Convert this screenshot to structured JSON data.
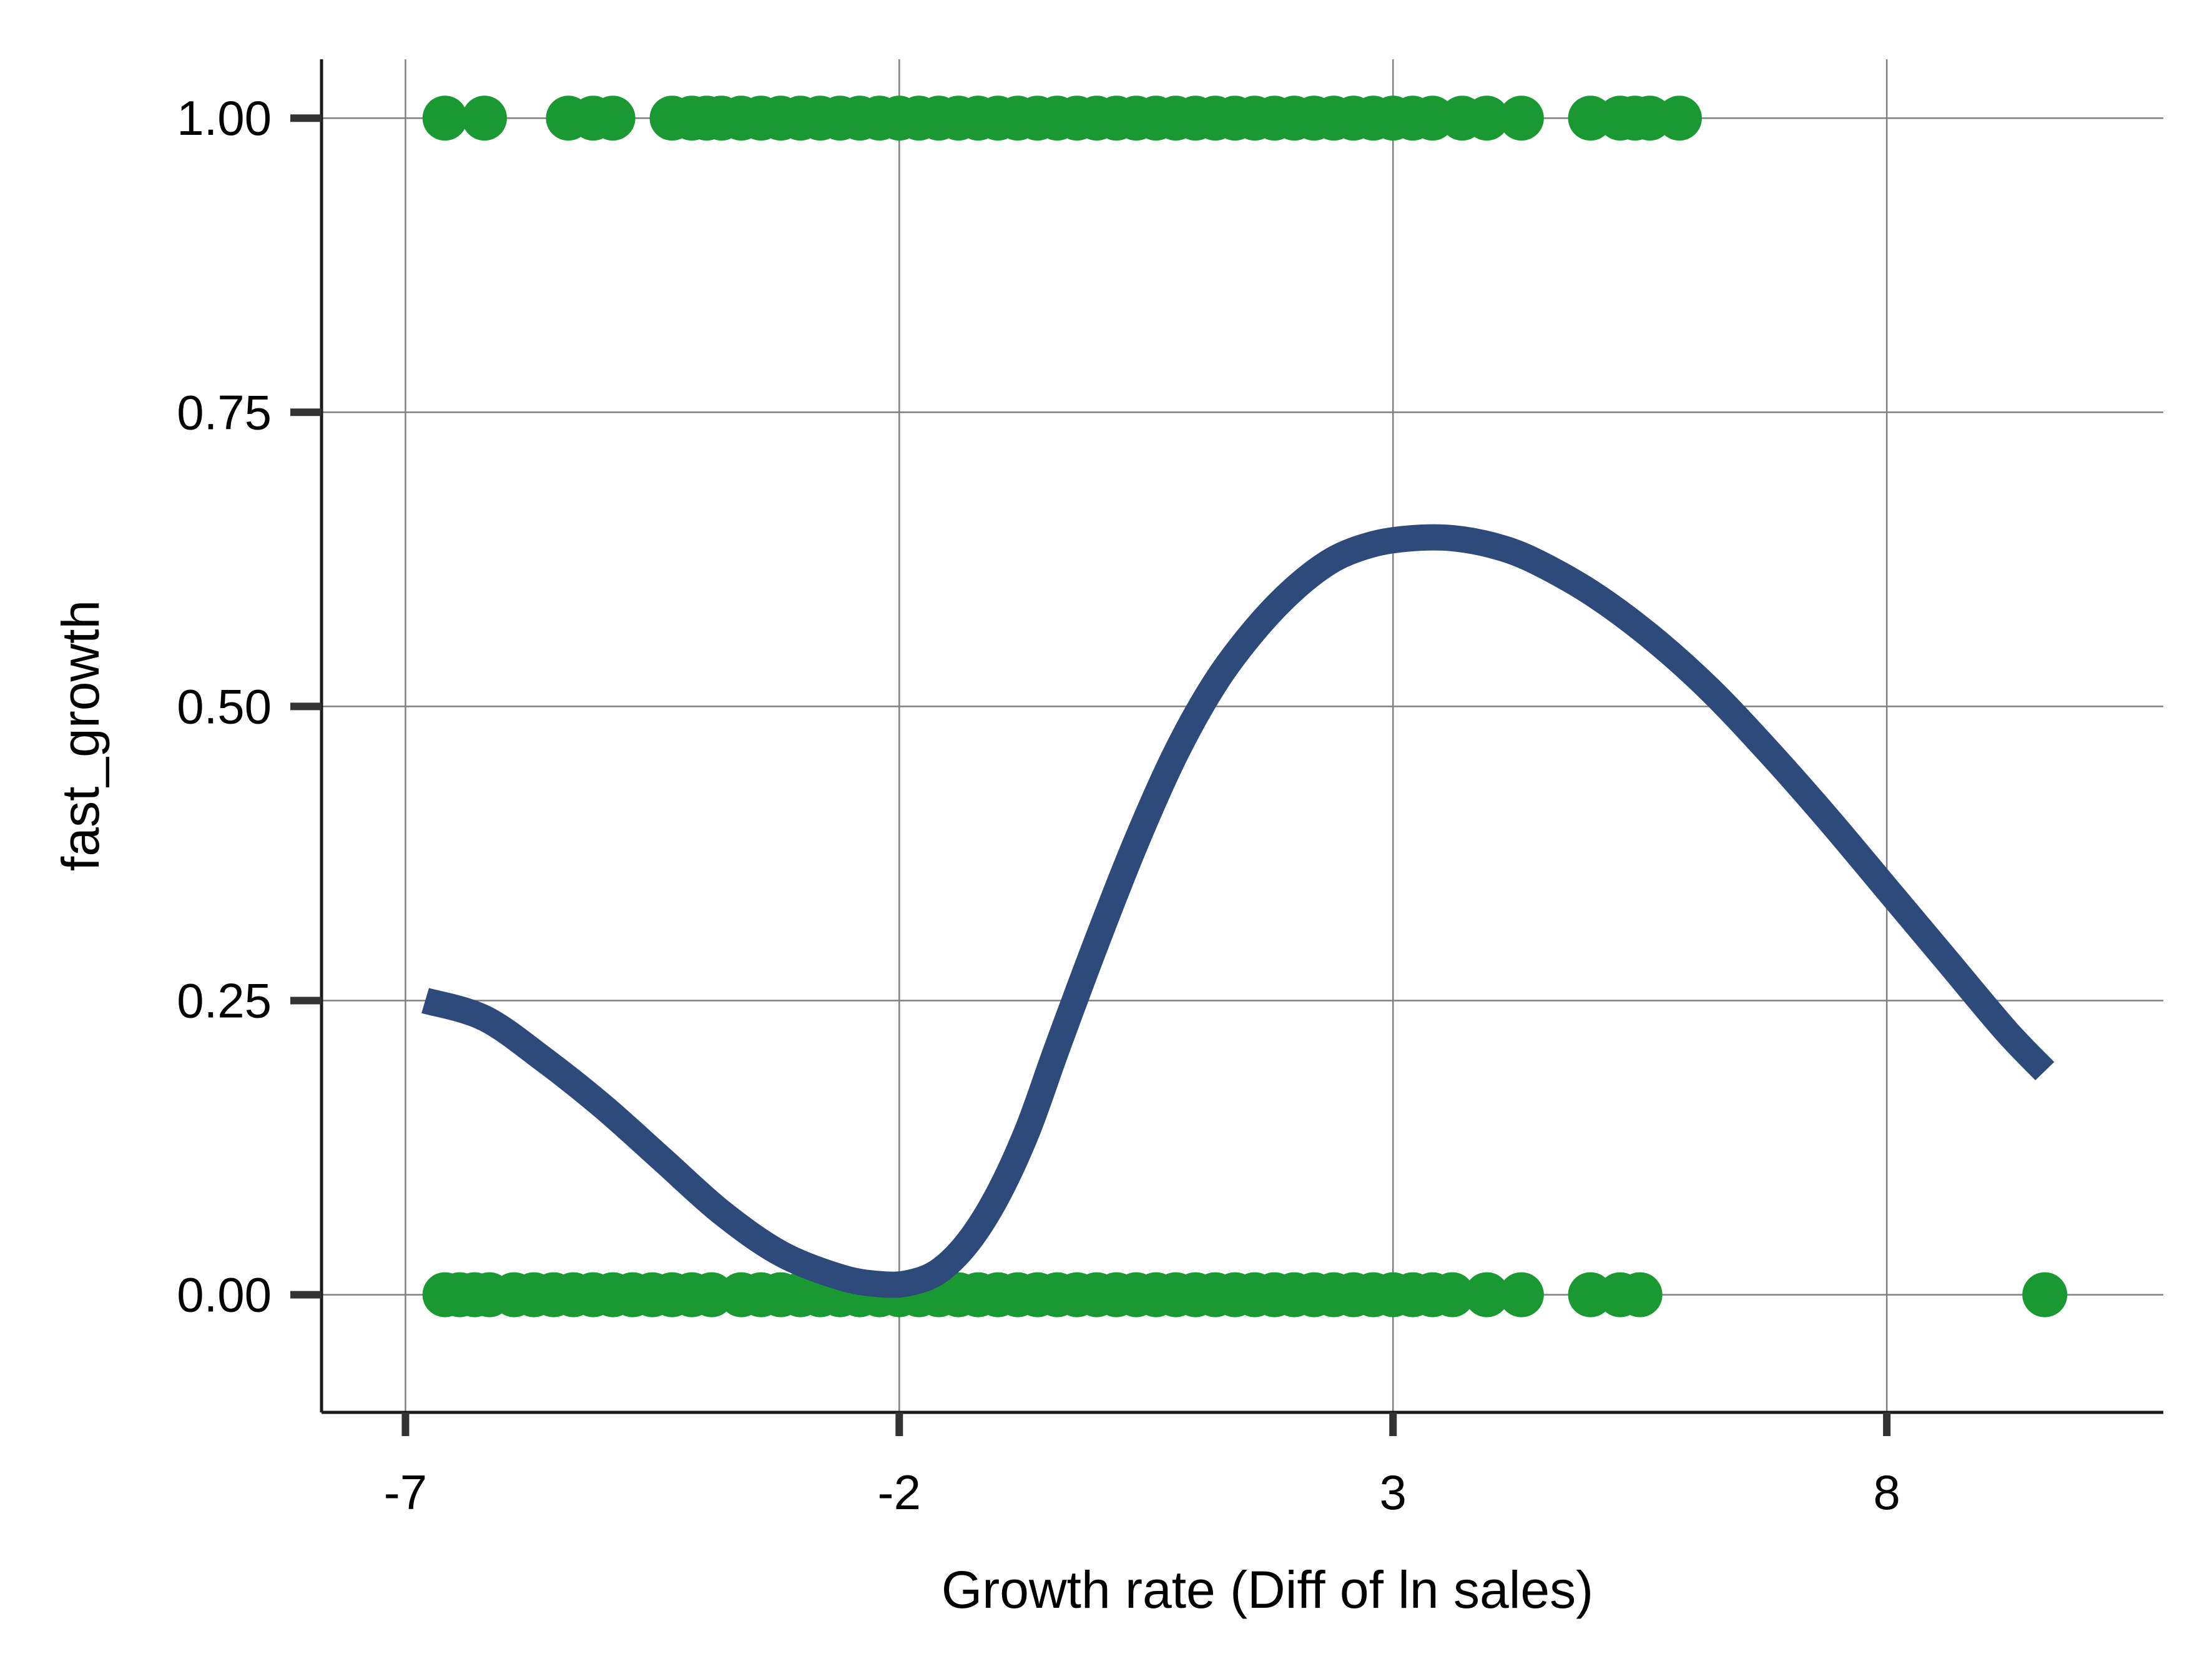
{
  "chart_data": {
    "type": "scatter",
    "title": "",
    "xlabel": "Growth rate (Diff of ln sales)",
    "ylabel": "fast_growth",
    "xlim": [
      -7.85,
      10.8
    ],
    "ylim": [
      -0.1,
      1.05
    ],
    "x_ticks": [
      -7,
      -2,
      3,
      8
    ],
    "x_tick_labels": [
      "-7",
      "-2",
      "3",
      "8"
    ],
    "y_ticks": [
      0,
      0.25,
      0.5,
      0.75,
      1
    ],
    "y_tick_labels": [
      "0.00",
      "0.25",
      "0.50",
      "0.75",
      "1.00"
    ],
    "grid": true,
    "legend": "none",
    "colors": {
      "points": "#1a9832",
      "line": "#2e4a7a",
      "grid": "#7f7f7f",
      "axis": "#1a1a1a"
    },
    "series": [
      {
        "kind": "points",
        "y": 1,
        "x": [
          -6.6,
          -6.2,
          -5.35,
          -5.1,
          -4.9,
          -4.3,
          -4.1,
          -3.95,
          -3.8,
          -3.6,
          -3.4,
          -3.2,
          -3.0,
          -2.8,
          -2.6,
          -2.4,
          -2.2,
          -2.0,
          -1.8,
          -1.6,
          -1.4,
          -1.2,
          -1.0,
          -0.8,
          -0.6,
          -0.4,
          -0.2,
          0.0,
          0.2,
          0.4,
          0.6,
          0.8,
          1.0,
          1.2,
          1.4,
          1.6,
          1.8,
          2.0,
          2.2,
          2.4,
          2.6,
          2.8,
          3.0,
          3.2,
          3.4,
          3.7,
          3.95,
          4.3,
          5.0,
          5.3,
          5.45,
          5.6,
          5.9
        ]
      },
      {
        "kind": "points",
        "y": 0,
        "x": [
          -6.6,
          -6.45,
          -6.3,
          -6.15,
          -5.9,
          -5.7,
          -5.5,
          -5.3,
          -5.1,
          -4.9,
          -4.7,
          -4.5,
          -4.3,
          -4.1,
          -3.9,
          -3.6,
          -3.4,
          -3.2,
          -3.0,
          -2.8,
          -2.6,
          -2.4,
          -2.2,
          -2.0,
          -1.8,
          -1.6,
          -1.4,
          -1.2,
          -1.0,
          -0.8,
          -0.6,
          -0.4,
          -0.2,
          0.0,
          0.2,
          0.4,
          0.6,
          0.8,
          1.0,
          1.2,
          1.4,
          1.6,
          1.8,
          2.0,
          2.2,
          2.4,
          2.6,
          2.8,
          3.0,
          3.2,
          3.4,
          3.6,
          3.95,
          4.3,
          5.0,
          5.3,
          5.5,
          9.6
        ]
      },
      {
        "kind": "line",
        "x": [
          -6.8,
          -6.2,
          -5.6,
          -5.0,
          -4.4,
          -3.8,
          -3.2,
          -2.6,
          -2.2,
          -1.9,
          -1.6,
          -1.3,
          -1.0,
          -0.7,
          -0.4,
          0.0,
          0.4,
          0.8,
          1.2,
          1.6,
          2.0,
          2.4,
          2.8,
          3.2,
          3.6,
          4.0,
          4.4,
          5.0,
          5.6,
          6.2,
          6.8,
          7.4,
          8.0,
          8.6,
          9.2,
          9.6
        ],
        "y": [
          0.25,
          0.235,
          0.2,
          0.16,
          0.115,
          0.07,
          0.035,
          0.015,
          0.009,
          0.01,
          0.02,
          0.045,
          0.085,
          0.14,
          0.21,
          0.3,
          0.385,
          0.46,
          0.52,
          0.565,
          0.6,
          0.625,
          0.638,
          0.643,
          0.643,
          0.637,
          0.625,
          0.597,
          0.56,
          0.515,
          0.462,
          0.405,
          0.345,
          0.285,
          0.225,
          0.19
        ]
      }
    ]
  }
}
